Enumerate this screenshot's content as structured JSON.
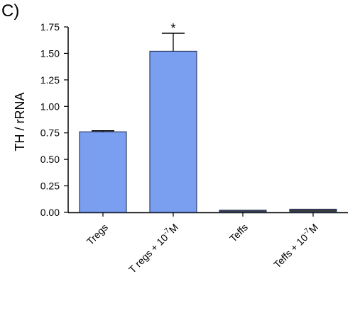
{
  "panel_label": "C)",
  "chart_data": {
    "type": "bar",
    "categories": [
      "Tregs",
      "T regs + 10^-7 M",
      "Teffs",
      "Teffs + 10^-7 M"
    ],
    "category_labels": [
      {
        "main": "Tregs",
        "sup": "",
        "tail": ""
      },
      {
        "main": "T regs + 10",
        "sup": "-7",
        "tail": "M"
      },
      {
        "main": "Teffs",
        "sup": "",
        "tail": ""
      },
      {
        "main": "Teffs + 10",
        "sup": "-7",
        "tail": "M"
      }
    ],
    "values": [
      0.76,
      1.52,
      0.02,
      0.03
    ],
    "errors": [
      0.01,
      0.17,
      0.0,
      0.0
    ],
    "bar_colors": [
      "#7b9ff0",
      "#7b9ff0",
      "#3a3a3a",
      "#3a3a3a"
    ],
    "bar_edge_color": "#2d3e66",
    "significance": [
      "",
      "*",
      "",
      ""
    ],
    "ylabel": "TH / rRNA",
    "ylim": [
      0,
      1.75
    ],
    "yticks": [
      0.0,
      0.25,
      0.5,
      0.75,
      1.0,
      1.25,
      1.5,
      1.75
    ],
    "ytick_labels": [
      "0.00",
      "0.25",
      "0.50",
      "0.75",
      "1.00",
      "1.25",
      "1.50",
      "1.75"
    ],
    "grid": false
  }
}
